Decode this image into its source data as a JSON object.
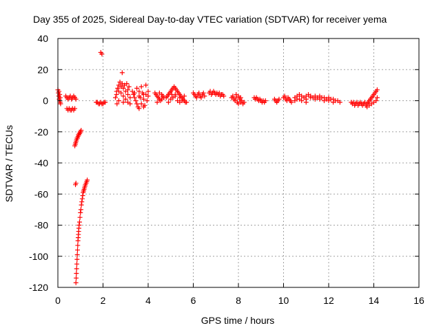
{
  "chart_data": {
    "type": "scatter",
    "title": "Day 355 of 2025, Sidereal Day-to-day VTEC variation (SDTVAR) for receiver yema",
    "xlabel": "GPS time / hours",
    "ylabel": "SDTVAR / TECUs",
    "xlim": [
      0,
      16
    ],
    "ylim": [
      -120,
      40
    ],
    "xticks": [
      0,
      2,
      4,
      6,
      8,
      10,
      12,
      14,
      16
    ],
    "yticks": [
      -120,
      -100,
      -80,
      -60,
      -40,
      -20,
      0,
      20,
      40
    ],
    "grid": true,
    "marker": "+",
    "colors": {
      "points": "#ff0000",
      "grid": "#a0a0a0",
      "axes": "#000000"
    },
    "series": [
      {
        "name": "SDTVAR",
        "points": [
          [
            0.0,
            7
          ],
          [
            0.02,
            5
          ],
          [
            0.04,
            3
          ],
          [
            0.06,
            1
          ],
          [
            0.08,
            0
          ],
          [
            0.1,
            -1
          ],
          [
            0.12,
            -2
          ],
          [
            0.05,
            6
          ],
          [
            0.08,
            4
          ],
          [
            0.1,
            2
          ],
          [
            0.35,
            3
          ],
          [
            0.4,
            2
          ],
          [
            0.45,
            1
          ],
          [
            0.5,
            2
          ],
          [
            0.55,
            3
          ],
          [
            0.6,
            1
          ],
          [
            0.65,
            2
          ],
          [
            0.7,
            3
          ],
          [
            0.75,
            2
          ],
          [
            0.8,
            1
          ],
          [
            0.4,
            -5
          ],
          [
            0.45,
            -6
          ],
          [
            0.5,
            -5
          ],
          [
            0.55,
            -6
          ],
          [
            0.6,
            -6
          ],
          [
            0.65,
            -5
          ],
          [
            0.7,
            -6
          ],
          [
            0.75,
            -5
          ],
          [
            0.75,
            -29
          ],
          [
            0.77,
            -28
          ],
          [
            0.79,
            -27
          ],
          [
            0.81,
            -26
          ],
          [
            0.83,
            -25
          ],
          [
            0.85,
            -24
          ],
          [
            0.87,
            -24
          ],
          [
            0.89,
            -23
          ],
          [
            0.91,
            -22
          ],
          [
            0.93,
            -22
          ],
          [
            0.95,
            -21
          ],
          [
            0.97,
            -21
          ],
          [
            0.99,
            -20
          ],
          [
            1.01,
            -20
          ],
          [
            1.03,
            -19
          ],
          [
            0.78,
            -54
          ],
          [
            0.8,
            -53
          ],
          [
            0.8,
            -117
          ],
          [
            0.81,
            -114
          ],
          [
            0.82,
            -111
          ],
          [
            0.83,
            -108
          ],
          [
            0.84,
            -105
          ],
          [
            0.85,
            -102
          ],
          [
            0.86,
            -99
          ],
          [
            0.87,
            -96
          ],
          [
            0.88,
            -93
          ],
          [
            0.89,
            -90
          ],
          [
            0.9,
            -88
          ],
          [
            0.91,
            -86
          ],
          [
            0.92,
            -84
          ],
          [
            0.93,
            -82
          ],
          [
            0.94,
            -80
          ],
          [
            0.96,
            -78
          ],
          [
            0.98,
            -75
          ],
          [
            1.0,
            -72
          ],
          [
            1.02,
            -70
          ],
          [
            1.04,
            -67
          ],
          [
            1.06,
            -65
          ],
          [
            1.08,
            -63
          ],
          [
            1.1,
            -61
          ],
          [
            1.12,
            -59
          ],
          [
            1.14,
            -58
          ],
          [
            1.16,
            -57
          ],
          [
            1.18,
            -56
          ],
          [
            1.2,
            -55
          ],
          [
            1.22,
            -54
          ],
          [
            1.25,
            -53
          ],
          [
            1.28,
            -52
          ],
          [
            1.3,
            -51
          ],
          [
            1.7,
            -1
          ],
          [
            1.75,
            -1
          ],
          [
            1.8,
            -2
          ],
          [
            1.85,
            -2
          ],
          [
            1.9,
            -1
          ],
          [
            1.95,
            -2
          ],
          [
            2.0,
            -2
          ],
          [
            2.05,
            -1
          ],
          [
            2.1,
            -1
          ],
          [
            1.9,
            31
          ],
          [
            1.95,
            30
          ],
          [
            2.55,
            2
          ],
          [
            2.6,
            4
          ],
          [
            2.6,
            6
          ],
          [
            2.62,
            -2
          ],
          [
            2.65,
            8
          ],
          [
            2.7,
            10
          ],
          [
            2.7,
            0
          ],
          [
            2.75,
            12
          ],
          [
            2.8,
            9
          ],
          [
            2.8,
            5
          ],
          [
            2.85,
            18
          ],
          [
            2.85,
            11
          ],
          [
            2.9,
            3
          ],
          [
            2.9,
            8
          ],
          [
            2.95,
            10
          ],
          [
            3.0,
            6
          ],
          [
            3.05,
            11
          ],
          [
            3.1,
            4
          ],
          [
            3.1,
            -1
          ],
          [
            3.15,
            9
          ],
          [
            3.2,
            2
          ],
          [
            3.2,
            -2
          ],
          [
            2.7,
            6
          ],
          [
            2.9,
            -1
          ],
          [
            3.0,
            1
          ],
          [
            3.1,
            7
          ],
          [
            3.3,
            6
          ],
          [
            3.35,
            4
          ],
          [
            3.4,
            2
          ],
          [
            3.45,
            0
          ],
          [
            3.5,
            -2
          ],
          [
            3.55,
            -4
          ],
          [
            3.6,
            6
          ],
          [
            3.65,
            2
          ],
          [
            3.7,
            -2
          ],
          [
            3.75,
            5
          ],
          [
            3.8,
            1
          ],
          [
            3.85,
            -3
          ],
          [
            3.9,
            4
          ],
          [
            3.95,
            0
          ],
          [
            4.0,
            3
          ],
          [
            3.5,
            8
          ],
          [
            3.7,
            9
          ],
          [
            3.9,
            10
          ],
          [
            3.6,
            -5
          ],
          [
            3.8,
            -4
          ],
          [
            3.4,
            5
          ],
          [
            3.6,
            3
          ],
          [
            3.8,
            4
          ],
          [
            4.0,
            6
          ],
          [
            4.3,
            5
          ],
          [
            4.35,
            4
          ],
          [
            4.4,
            3
          ],
          [
            4.45,
            2
          ],
          [
            4.5,
            1
          ],
          [
            4.55,
            0
          ],
          [
            4.6,
            4
          ],
          [
            4.65,
            3
          ],
          [
            4.7,
            2
          ],
          [
            4.4,
            -1
          ],
          [
            4.5,
            5
          ],
          [
            4.6,
            1
          ],
          [
            4.8,
            2
          ],
          [
            4.85,
            3
          ],
          [
            4.9,
            4
          ],
          [
            4.95,
            5
          ],
          [
            5.0,
            6
          ],
          [
            5.05,
            7
          ],
          [
            5.1,
            8
          ],
          [
            5.15,
            9
          ],
          [
            5.2,
            8
          ],
          [
            5.25,
            7
          ],
          [
            5.3,
            6
          ],
          [
            5.35,
            5
          ],
          [
            5.4,
            4
          ],
          [
            5.45,
            3
          ],
          [
            5.5,
            2
          ],
          [
            5.55,
            1
          ],
          [
            5.6,
            0
          ],
          [
            5.65,
            -1
          ],
          [
            5.7,
            -1
          ],
          [
            5.0,
            1
          ],
          [
            5.1,
            2
          ],
          [
            5.2,
            3
          ],
          [
            5.3,
            0
          ],
          [
            5.4,
            -1
          ],
          [
            5.5,
            0
          ],
          [
            5.6,
            3
          ],
          [
            5.2,
            4
          ],
          [
            5.4,
            2
          ],
          [
            4.9,
            -1
          ],
          [
            5.05,
            4
          ],
          [
            6.0,
            5
          ],
          [
            6.05,
            4
          ],
          [
            6.1,
            3
          ],
          [
            6.15,
            2
          ],
          [
            6.2,
            4
          ],
          [
            6.25,
            5
          ],
          [
            6.3,
            3
          ],
          [
            6.35,
            2
          ],
          [
            6.4,
            4
          ],
          [
            6.45,
            5
          ],
          [
            6.5,
            3
          ],
          [
            6.7,
            5
          ],
          [
            6.75,
            6
          ],
          [
            6.8,
            4
          ],
          [
            6.85,
            5
          ],
          [
            6.9,
            6
          ],
          [
            6.95,
            5
          ],
          [
            7.0,
            4
          ],
          [
            7.05,
            5
          ],
          [
            7.1,
            4
          ],
          [
            7.15,
            5
          ],
          [
            7.2,
            3
          ],
          [
            7.25,
            4
          ],
          [
            7.3,
            4
          ],
          [
            7.35,
            3
          ],
          [
            7.7,
            2
          ],
          [
            7.75,
            3
          ],
          [
            7.8,
            1
          ],
          [
            7.85,
            0
          ],
          [
            7.9,
            2
          ],
          [
            7.95,
            -1
          ],
          [
            8.0,
            3
          ],
          [
            8.05,
            1
          ],
          [
            8.1,
            -1
          ],
          [
            8.15,
            0
          ],
          [
            8.2,
            -2
          ],
          [
            8.25,
            -1
          ],
          [
            7.9,
            4
          ],
          [
            8.0,
            -2
          ],
          [
            8.1,
            2
          ],
          [
            8.7,
            2
          ],
          [
            8.75,
            1
          ],
          [
            8.8,
            2
          ],
          [
            8.85,
            1
          ],
          [
            8.9,
            0
          ],
          [
            8.95,
            1
          ],
          [
            9.0,
            0
          ],
          [
            9.05,
            -1
          ],
          [
            9.1,
            0
          ],
          [
            9.15,
            -1
          ],
          [
            9.2,
            0
          ],
          [
            9.6,
            1
          ],
          [
            9.65,
            0
          ],
          [
            9.7,
            -1
          ],
          [
            9.75,
            0
          ],
          [
            9.8,
            1
          ],
          [
            10.0,
            2
          ],
          [
            10.05,
            3
          ],
          [
            10.1,
            1
          ],
          [
            10.15,
            0
          ],
          [
            10.2,
            2
          ],
          [
            10.25,
            1
          ],
          [
            10.3,
            0
          ],
          [
            10.35,
            -1
          ],
          [
            10.5,
            2
          ],
          [
            10.6,
            3
          ],
          [
            10.7,
            4
          ],
          [
            10.8,
            3
          ],
          [
            10.9,
            2
          ],
          [
            11.0,
            3
          ],
          [
            11.1,
            4
          ],
          [
            11.2,
            3
          ],
          [
            11.3,
            2
          ],
          [
            11.4,
            3
          ],
          [
            11.5,
            2
          ],
          [
            11.6,
            3
          ],
          [
            11.7,
            2
          ],
          [
            11.8,
            2
          ],
          [
            11.9,
            1
          ],
          [
            12.0,
            2
          ],
          [
            12.1,
            1
          ],
          [
            12.2,
            1
          ],
          [
            12.3,
            0
          ],
          [
            12.4,
            0
          ],
          [
            12.5,
            -1
          ],
          [
            10.6,
            1
          ],
          [
            10.8,
            0
          ],
          [
            11.0,
            1
          ],
          [
            11.2,
            2
          ],
          [
            11.4,
            1
          ],
          [
            11.6,
            1
          ],
          [
            11.8,
            0
          ],
          [
            12.0,
            0
          ],
          [
            12.2,
            -1
          ],
          [
            10.5,
            0
          ],
          [
            10.7,
            1
          ],
          [
            11.0,
            -1
          ],
          [
            13.0,
            -1
          ],
          [
            13.05,
            -2
          ],
          [
            13.1,
            -1
          ],
          [
            13.15,
            -3
          ],
          [
            13.2,
            -2
          ],
          [
            13.25,
            -1
          ],
          [
            13.3,
            -3
          ],
          [
            13.35,
            -2
          ],
          [
            13.4,
            -1
          ],
          [
            13.45,
            -2
          ],
          [
            13.5,
            -3
          ],
          [
            13.55,
            -2
          ],
          [
            13.6,
            -1
          ],
          [
            13.65,
            -3
          ],
          [
            13.7,
            -2
          ],
          [
            13.75,
            -1
          ],
          [
            13.8,
            0
          ],
          [
            13.85,
            1
          ],
          [
            13.9,
            2
          ],
          [
            13.95,
            3
          ],
          [
            14.0,
            4
          ],
          [
            14.05,
            5
          ],
          [
            14.1,
            6
          ],
          [
            14.15,
            7
          ],
          [
            13.7,
            -4
          ],
          [
            13.8,
            -3
          ],
          [
            13.9,
            -2
          ],
          [
            14.0,
            -1
          ],
          [
            14.1,
            0
          ],
          [
            14.15,
            2
          ]
        ]
      }
    ]
  }
}
